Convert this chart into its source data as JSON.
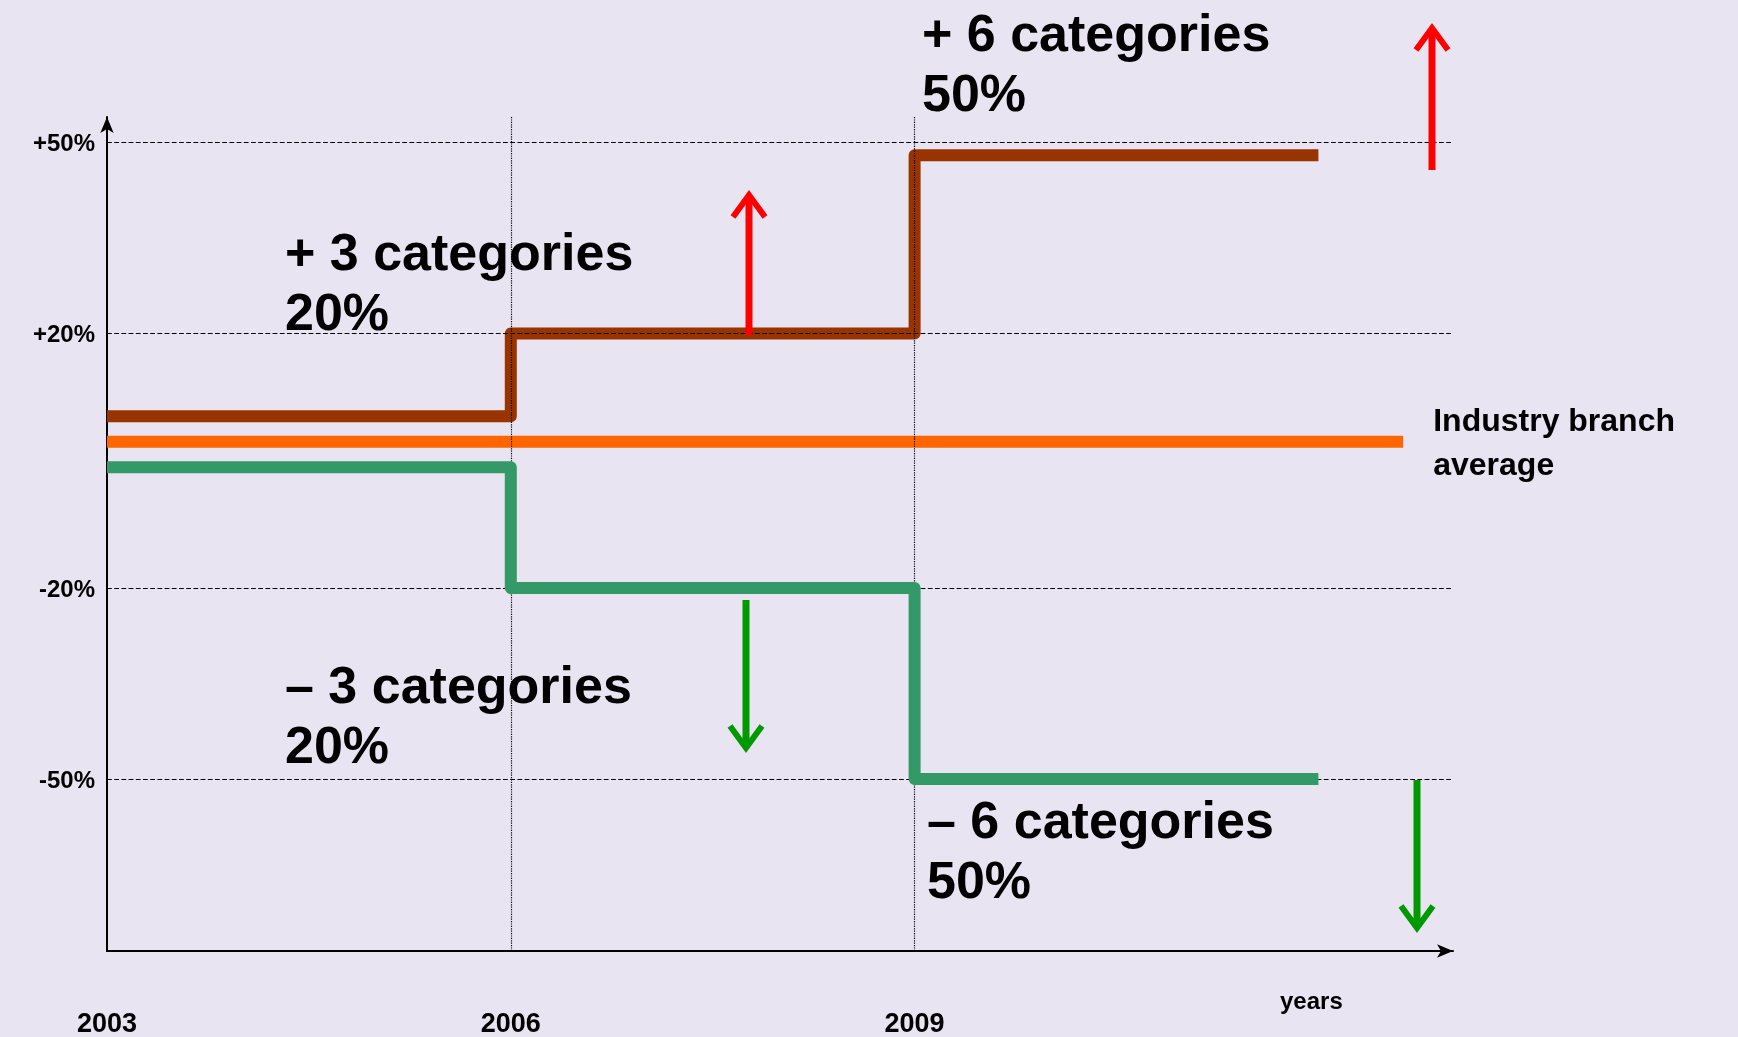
{
  "chart_data": {
    "type": "step",
    "xlabel": "years",
    "xlim": [
      2003,
      2013
    ],
    "xticks": [
      2003,
      2006,
      2009
    ],
    "ylim": [
      -77,
      54
    ],
    "yticks": [
      {
        "value": 50,
        "label": "+50%"
      },
      {
        "value": 20,
        "label": "+20%"
      },
      {
        "value": -20,
        "label": "-20%"
      },
      {
        "value": -50,
        "label": "-50%"
      }
    ],
    "series": [
      {
        "color": "#993300",
        "x": [
          2003,
          2006,
          2009,
          2012
        ],
        "values": [
          7,
          20,
          48,
          48
        ]
      },
      {
        "name": "Industry branch average",
        "color": "#ff6600",
        "x": [
          2003,
          2006,
          2012.63
        ],
        "values": [
          3,
          3,
          3
        ]
      },
      {
        "color": "#339966",
        "x": [
          2003,
          2006,
          2009,
          2012
        ],
        "values": [
          -1,
          -20,
          -50,
          -50
        ]
      }
    ],
    "ref_lines": [
      {
        "axis": "y",
        "value": 50,
        "line_style": "dashed"
      },
      {
        "axis": "y",
        "value": 20,
        "line_style": "dashed"
      },
      {
        "axis": "y",
        "value": -20,
        "line_style": "dashed"
      },
      {
        "axis": "y",
        "value": -50,
        "line_style": "dashed"
      },
      {
        "axis": "x",
        "value": 2006,
        "line_style": "dotted"
      },
      {
        "axis": "x",
        "value": 2009,
        "line_style": "dotted"
      }
    ],
    "annotations": [
      "+ 3 categories\n20%",
      "+ 6 categories\n50%",
      "– 3 categories\n20%",
      "– 6 categories\n50%"
    ],
    "grid": false,
    "legend": false,
    "marker": "none",
    "line_style": "solid"
  }
}
